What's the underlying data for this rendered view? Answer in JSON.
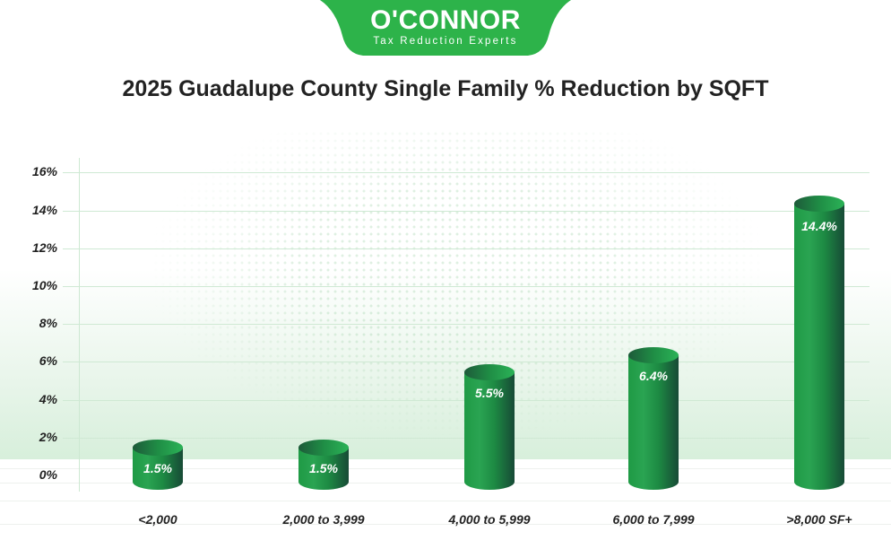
{
  "logo": {
    "name": "O'CONNOR",
    "tagline": "Tax Reduction Experts",
    "color": "#2db34a"
  },
  "title": "2025 Guadalupe County Single Family % Reduction by SQFT",
  "y_ticks": [
    "16%",
    "14%",
    "12%",
    "10%",
    "8%",
    "6%",
    "4%",
    "2%",
    "0%"
  ],
  "bars": [
    {
      "category": "<2,000",
      "label": "1.5%"
    },
    {
      "category": "2,000 to 3,999",
      "label": "1.5%"
    },
    {
      "category": "4,000 to 5,999",
      "label": "5.5%"
    },
    {
      "category": "6,000 to 7,999",
      "label": "6.4%"
    },
    {
      "category": ">8,000 SF+",
      "label": "14.4%"
    }
  ],
  "colors": {
    "bar_light": "#2aa452",
    "bar_dark": "#174a36",
    "grid": "#cfe9d4",
    "text": "#222222"
  },
  "chart_data": {
    "type": "bar",
    "title": "2025 Guadalupe County Single Family % Reduction by SQFT",
    "categories": [
      "<2,000",
      "2,000 to 3,999",
      "4,000 to 5,999",
      "6,000 to 7,999",
      ">8,000 SF+"
    ],
    "values": [
      1.5,
      1.5,
      5.5,
      6.4,
      14.4
    ],
    "value_labels": [
      "1.5%",
      "1.5%",
      "5.5%",
      "6.4%",
      "14.4%"
    ],
    "xlabel": "",
    "ylabel": "",
    "ylim": [
      0,
      16
    ],
    "y_tick_step": 2,
    "y_tick_format": "percent",
    "grid": true,
    "legend": null,
    "style": "3D cylinders"
  }
}
